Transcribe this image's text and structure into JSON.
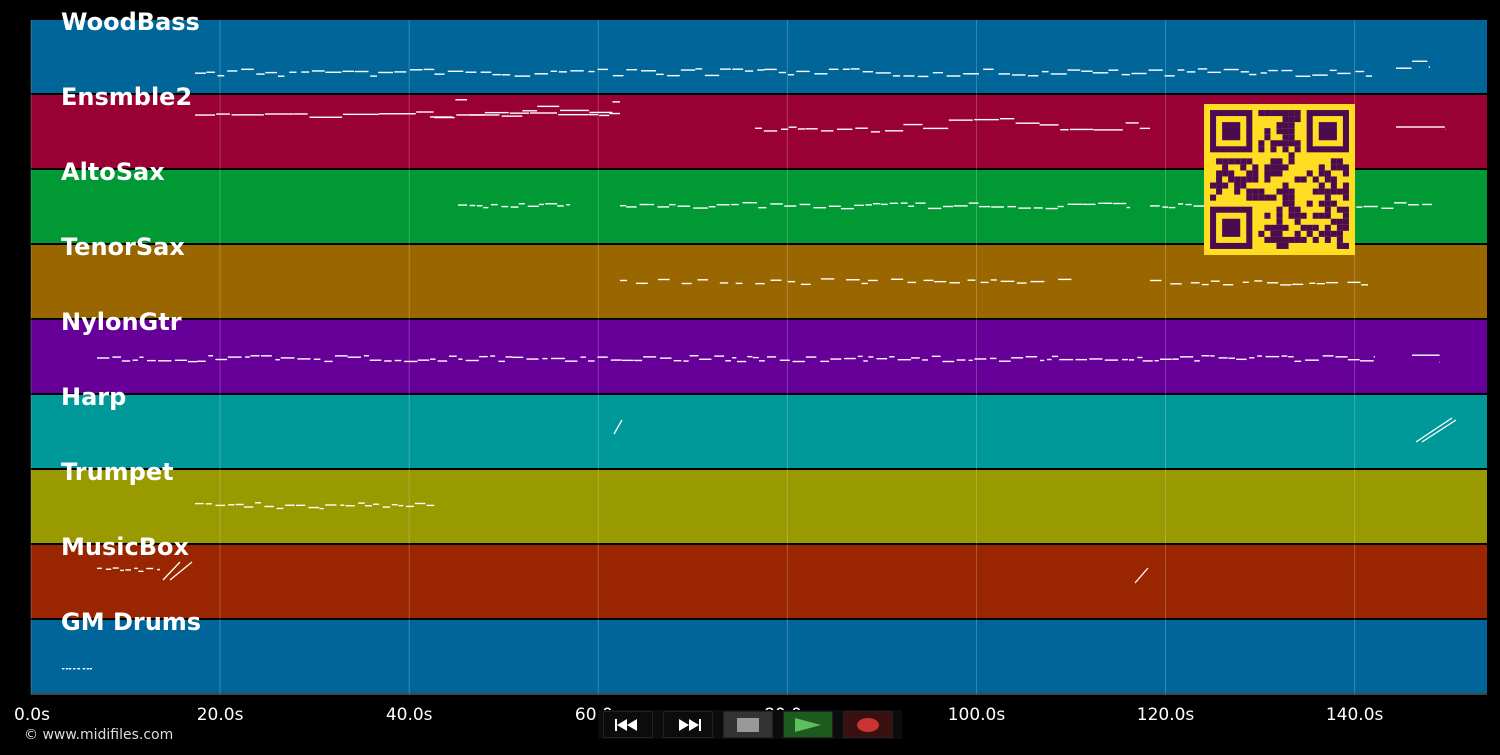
{
  "colors": {
    "background": "#000000",
    "tracks": [
      "#006699",
      "#990033",
      "#009933",
      "#996600",
      "#660099",
      "#009999",
      "#999900",
      "#992600",
      "#006699"
    ],
    "note": "#ffffff",
    "qr_fg": "#4a0b4f",
    "qr_bg": "#ffdd22",
    "play": "#55aa55",
    "record": "#cc3333"
  },
  "tracks": [
    {
      "name": "WoodBass"
    },
    {
      "name": "Ensmble2"
    },
    {
      "name": "AltoSax"
    },
    {
      "name": "TenorSax"
    },
    {
      "name": "NylonGtr"
    },
    {
      "name": "Harp"
    },
    {
      "name": "Trumpet"
    },
    {
      "name": "MusicBox"
    },
    {
      "name": "GM Drums"
    }
  ],
  "timeline": {
    "ticks": [
      "0.0s",
      "20.0s",
      "40.0s",
      "60.0s",
      "80.0s",
      "100.0s",
      "120.0s",
      "140.0s"
    ],
    "tick_values": [
      0,
      20,
      40,
      60,
      80,
      100,
      120,
      140
    ],
    "max_seconds": 154
  },
  "copyright": "© www.midifiles.com",
  "transport": {
    "buttons": [
      {
        "name": "rewind-button",
        "icon": "rewind-icon"
      },
      {
        "name": "fast-forward-button",
        "icon": "fast-forward-icon"
      },
      {
        "name": "stop-button",
        "icon": "stop-icon"
      },
      {
        "name": "play-button",
        "icon": "play-icon"
      },
      {
        "name": "record-button",
        "icon": "record-icon"
      }
    ]
  },
  "qr": {
    "icon": "qr-code-icon"
  }
}
